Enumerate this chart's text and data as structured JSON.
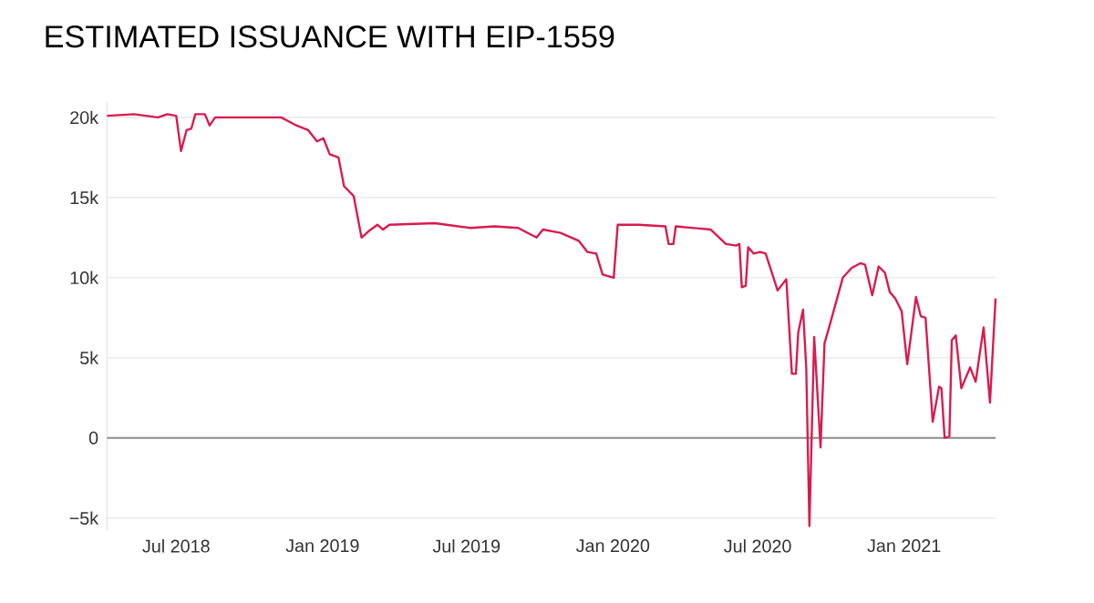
{
  "chart_data": {
    "type": "line",
    "title": "ESTIMATED ISSUANCE WITH EIP-1559",
    "x": [
      "2018-04-05",
      "2018-05-09",
      "2018-06-08",
      "2018-06-20",
      "2018-07-01",
      "2018-07-07",
      "2018-07-14",
      "2018-07-20",
      "2018-07-25",
      "2018-08-06",
      "2018-08-12",
      "2018-08-19",
      "2018-10-07",
      "2018-11-10",
      "2018-11-29",
      "2018-12-14",
      "2018-12-25",
      "2019-01-02",
      "2019-01-10",
      "2019-01-21",
      "2019-01-28",
      "2019-02-09",
      "2019-02-19",
      "2019-02-28",
      "2019-03-11",
      "2019-03-18",
      "2019-03-26",
      "2019-05-22",
      "2019-07-06",
      "2019-08-05",
      "2019-09-04",
      "2019-09-27",
      "2019-10-05",
      "2019-10-27",
      "2019-11-19",
      "2019-11-30",
      "2019-12-11",
      "2019-12-19",
      "2020-01-02",
      "2020-01-07",
      "2020-02-02",
      "2020-03-07",
      "2020-03-11",
      "2020-03-17",
      "2020-03-20",
      "2020-05-03",
      "2020-05-22",
      "2020-06-04",
      "2020-06-08",
      "2020-06-11",
      "2020-06-16",
      "2020-06-19",
      "2020-06-26",
      "2020-07-04",
      "2020-07-11",
      "2020-07-26",
      "2020-08-06",
      "2020-08-13",
      "2020-08-18",
      "2020-08-21",
      "2020-08-27",
      "2020-08-31",
      "2020-09-04",
      "2020-09-10",
      "2020-09-18",
      "2020-09-23",
      "2020-10-01",
      "2020-10-16",
      "2020-10-27",
      "2020-11-07",
      "2020-11-13",
      "2020-11-22",
      "2020-11-30",
      "2020-12-08",
      "2020-12-14",
      "2020-12-21",
      "2020-12-29",
      "2021-01-05",
      "2021-01-16",
      "2021-01-22",
      "2021-01-28",
      "2021-02-06",
      "2021-02-14",
      "2021-02-17",
      "2021-02-21",
      "2021-02-27",
      "2021-03-02",
      "2021-03-07",
      "2021-03-14",
      "2021-03-25",
      "2021-04-01",
      "2021-04-11",
      "2021-04-19",
      "2021-04-26"
    ],
    "series": [
      {
        "color": "#d81b4f",
        "values": [
          20100,
          20200,
          20000,
          20200,
          20100,
          17900,
          19200,
          19300,
          20200,
          20200,
          19500,
          20000,
          20000,
          20000,
          19500,
          19200,
          18500,
          18700,
          17700,
          17500,
          15700,
          15100,
          12500,
          12900,
          13300,
          13000,
          13300,
          13400,
          13100,
          13200,
          13100,
          12500,
          13000,
          12800,
          12300,
          11600,
          11500,
          10200,
          10000,
          13300,
          13300,
          13200,
          12100,
          12100,
          13200,
          13000,
          12100,
          12000,
          12100,
          9400,
          9500,
          11900,
          11500,
          11600,
          11500,
          9200,
          9900,
          4000,
          4000,
          6600,
          8000,
          4400,
          -5500,
          6300,
          -600,
          5900,
          7300,
          10000,
          10600,
          10900,
          10800,
          8900,
          10700,
          10300,
          9100,
          8700,
          7900,
          4600,
          8800,
          7600,
          7500,
          1000,
          3200,
          3100,
          0,
          100,
          6100,
          6400,
          3100,
          4400,
          3500,
          6900,
          2200,
          8700
        ]
      }
    ],
    "xlim": [
      "2018-04-05",
      "2021-04-26"
    ],
    "xticks": [
      {
        "value": "2018-07-01",
        "label": "Jul 2018"
      },
      {
        "value": "2019-01-01",
        "label": "Jan 2019"
      },
      {
        "value": "2019-07-01",
        "label": "Jul 2019"
      },
      {
        "value": "2020-01-01",
        "label": "Jan 2020"
      },
      {
        "value": "2020-07-01",
        "label": "Jul 2020"
      },
      {
        "value": "2021-01-01",
        "label": "Jan 2021"
      }
    ],
    "ylim": [
      -5800,
      21000
    ],
    "yticks": [
      {
        "value": -5000,
        "label": "−5k"
      },
      {
        "value": 0,
        "label": "0"
      },
      {
        "value": 5000,
        "label": "5k"
      },
      {
        "value": 10000,
        "label": "10k"
      },
      {
        "value": 15000,
        "label": "15k"
      },
      {
        "value": 20000,
        "label": "20k"
      }
    ],
    "grid": "y",
    "ref_lines": [
      {
        "axis": "y",
        "value": 0,
        "color": "#8c8c8c"
      }
    ]
  }
}
